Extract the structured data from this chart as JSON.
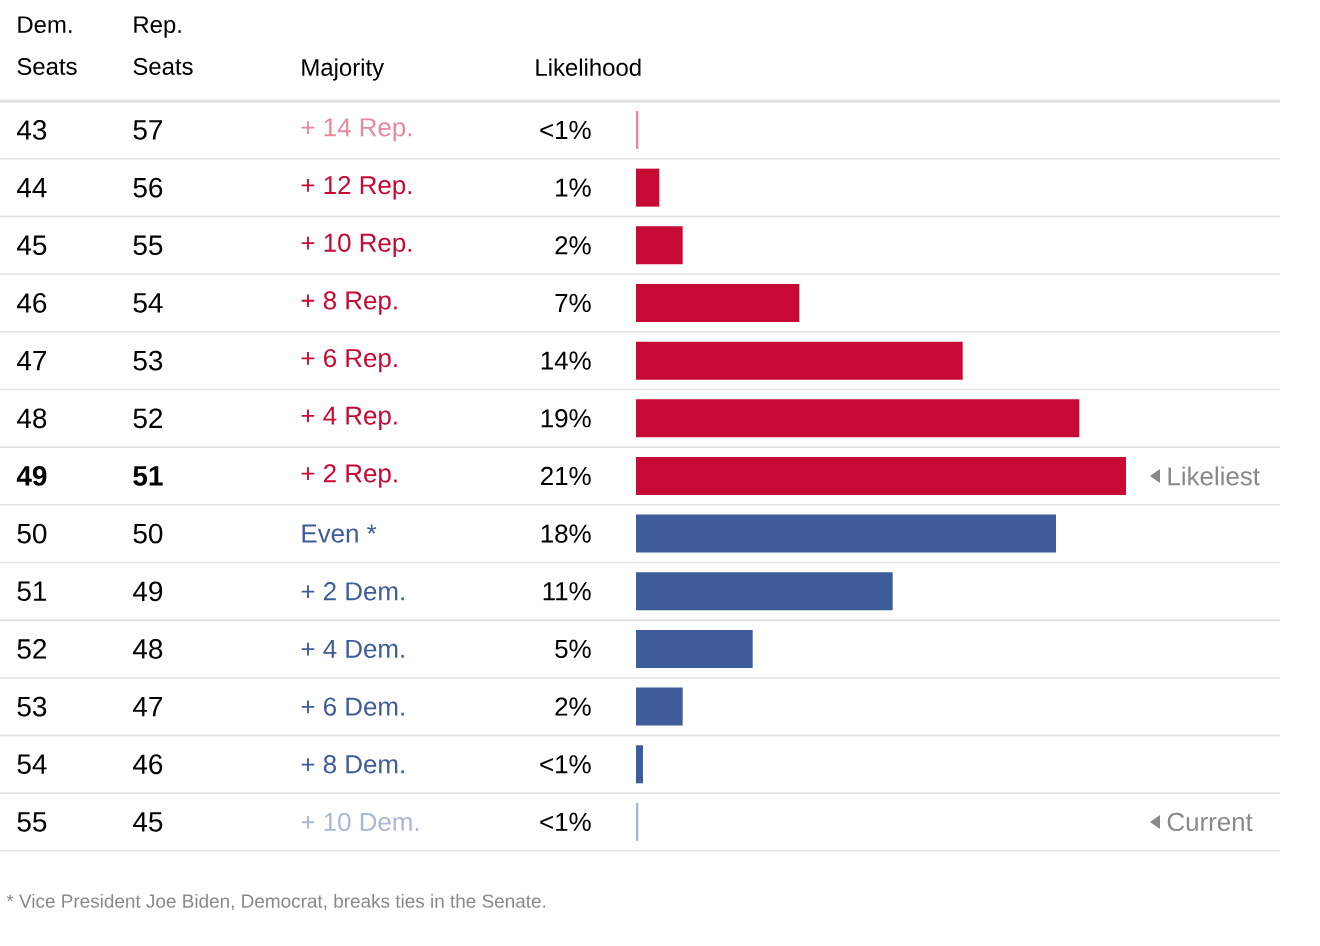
{
  "chart_data": {
    "type": "bar",
    "orientation": "horizontal",
    "ylabel": "Dem. Seats",
    "xlabel": "Likelihood",
    "grid": "y",
    "categories": [
      "43",
      "44",
      "45",
      "46",
      "47",
      "48",
      "**49**",
      "50",
      "51",
      "52",
      "53",
      "54",
      "55"
    ],
    "values": [
      0.1,
      1,
      2,
      7,
      14,
      19,
      21,
      18,
      11,
      5,
      2,
      0.3,
      0.1
    ],
    "colors": [
      "#e8899c",
      "#c70a34",
      "#c70a34",
      "#c70a34",
      "#c70a34",
      "#c70a34",
      "#c70a34",
      "#3e5c9a",
      "#3e5c9a",
      "#3e5c9a",
      "#3e5c9a",
      "#3e5c9a",
      "#a9b7d4"
    ],
    "value_labels": [
      "<1%",
      "1%",
      "2%",
      "7%",
      "14%",
      "19%",
      "21%",
      "18%",
      "11%",
      "5%",
      "2%",
      "<1%",
      "<1%"
    ],
    "annotations": [
      "Rep. Seats",
      "Majority",
      "57",
      "56",
      "55",
      "54",
      "53",
      "52",
      "**51**",
      "50",
      "49",
      "48",
      "47",
      "46",
      "45",
      "+ 14 Rep.",
      "+ 12 Rep.",
      "+ 10 Rep.",
      "+ 8 Rep.",
      "+ 6 Rep.",
      "+ 4 Rep.",
      "+ 2 Rep.",
      "Even *",
      "+ 2 Dem.",
      "+ 4 Dem.",
      "+ 6 Dem.",
      "+ 8 Dem.",
      "+ 10 Dem.",
      {
        "text": "Likeliest",
        "x": 21,
        "y": "**49**"
      },
      "Current",
      "* Vice President Joe Biden, Democrat, breaks ties in the Senate."
    ]
  }
}
